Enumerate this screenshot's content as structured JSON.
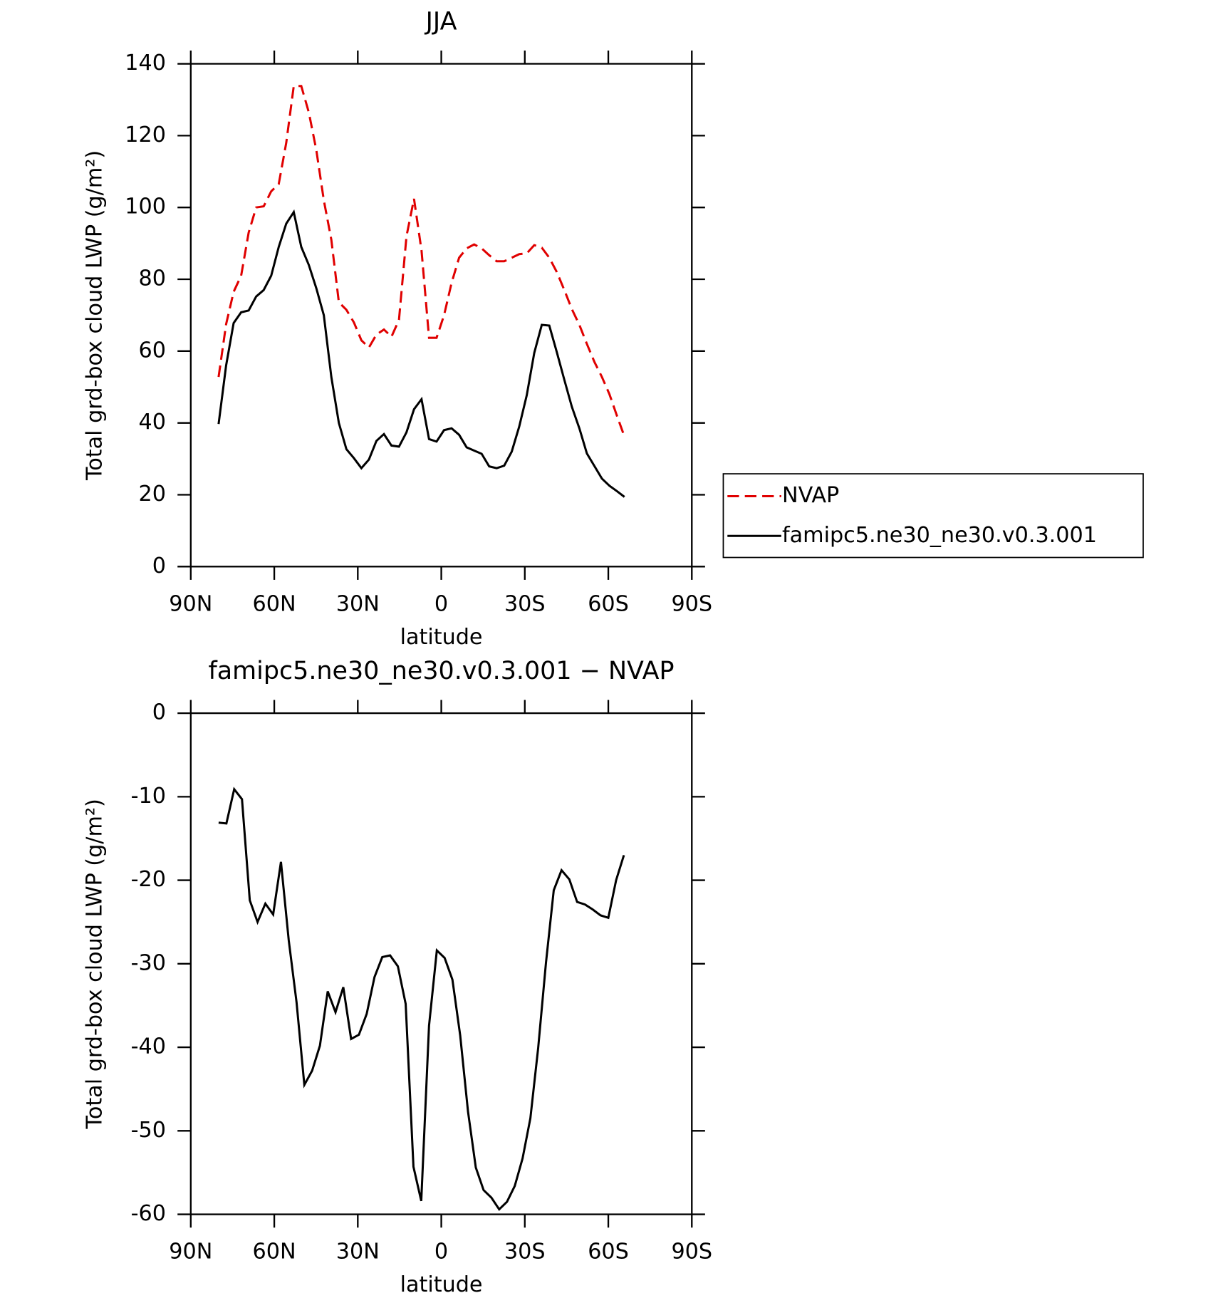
{
  "chart_data": [
    {
      "type": "line",
      "title": "JJA",
      "xlabel": "latitude",
      "ylabel": "Total grd-box cloud LWP (g/m²)",
      "x": [
        80,
        77.3,
        74.6,
        71.9,
        69.2,
        66.5,
        63.8,
        61.1,
        58.4,
        55.7,
        53,
        50.3,
        47.6,
        44.9,
        42.2,
        39.5,
        36.8,
        34.1,
        31.4,
        28.7,
        26,
        23.3,
        20.6,
        17.9,
        15.2,
        12.5,
        9.8,
        7.1,
        4.4,
        1.7,
        -1,
        -3.7,
        -6.4,
        -9.1,
        -11.8,
        -14.5,
        -17.2,
        -19.9,
        -22.6,
        -25.3,
        -28,
        -30.7,
        -33.4,
        -36.1,
        -38.8,
        -41.5,
        -44.2,
        -46.9,
        -49.6,
        -52.3,
        -55,
        -57.7,
        -60.4,
        -63.1,
        -65.8
      ],
      "series": [
        {
          "name": "NVAP",
          "color": "#e00000",
          "dash": "dashed",
          "values": [
            52.8,
            67.5,
            76.5,
            81,
            93,
            100,
            100.3,
            104.5,
            106.5,
            118,
            133.8,
            133.8,
            126.5,
            116,
            102,
            91,
            73.6,
            71.5,
            68,
            63,
            61,
            64.6,
            66,
            64,
            68.7,
            92,
            102.4,
            88,
            63.7,
            63.7,
            70,
            79,
            86,
            88.6,
            89.7,
            88.6,
            86.7,
            85,
            85,
            86,
            87,
            87.2,
            89.5,
            88.8,
            86,
            82,
            77,
            71.7,
            67.3,
            62,
            57,
            52.8,
            48,
            42,
            36.2
          ]
        },
        {
          "name": "famipc5.ne30_ne30.v0.3.001",
          "color": "#000000",
          "dash": "solid",
          "values": [
            39.7,
            56,
            67.8,
            70.8,
            71.3,
            75.2,
            77,
            81,
            89,
            95.5,
            98.7,
            89,
            84,
            77.5,
            70,
            52.8,
            40,
            32.7,
            30.2,
            27.4,
            29.8,
            35,
            36.9,
            33.7,
            33.4,
            37.4,
            43.8,
            46.6,
            35.5,
            34.8,
            38,
            38.5,
            36.7,
            33.2,
            32.3,
            31.4,
            27.9,
            27.4,
            28.1,
            32,
            39,
            47.7,
            59.5,
            67.3,
            67.1,
            59.7,
            52,
            44.5,
            38.5,
            31.5,
            28,
            24.5,
            22.5,
            21,
            19.4
          ]
        }
      ],
      "xlim": [
        90,
        -90
      ],
      "xticks": [
        {
          "value": 90,
          "label": "90N"
        },
        {
          "value": 60,
          "label": "60N"
        },
        {
          "value": 30,
          "label": "30N"
        },
        0,
        {
          "value": -30,
          "label": "30S"
        },
        {
          "value": -60,
          "label": "60S"
        },
        {
          "value": -90,
          "label": "90S"
        }
      ],
      "ylim": [
        0,
        140
      ],
      "yticks": [
        0,
        20,
        40,
        60,
        80,
        100,
        120,
        140
      ],
      "legend": "right"
    },
    {
      "type": "line",
      "title": "famipc5.ne30_ne30.v0.3.001 − NVAP",
      "xlabel": "latitude",
      "ylabel": "Total grd-box cloud LWP (g/m²)",
      "x": [
        80,
        77.2,
        74.4,
        71.6,
        68.8,
        66,
        63.2,
        60.4,
        57.6,
        54.8,
        52,
        49.2,
        46.4,
        43.6,
        40.8,
        38,
        35.2,
        32.4,
        29.6,
        26.8,
        24,
        21.2,
        18.4,
        15.6,
        12.8,
        10,
        7.2,
        4.4,
        1.6,
        -1.2,
        -4,
        -6.8,
        -9.6,
        -12.4,
        -15.2,
        -18,
        -20.8,
        -23.6,
        -26.4,
        -29.2,
        -32,
        -34.8,
        -37.6,
        -40.4,
        -43.2,
        -46,
        -48.8,
        -51.6,
        -54.4,
        -57.2,
        -60,
        -62.8,
        -65.6
      ],
      "series": [
        {
          "color": "#000000",
          "dash": "solid",
          "values": [
            -13.1,
            -13.2,
            -9.1,
            -10.3,
            -22.4,
            -25,
            -22.8,
            -24.1,
            -17.8,
            -27.2,
            -34.6,
            -44.5,
            -42.8,
            -39.8,
            -33.3,
            -35.8,
            -32.8,
            -39,
            -38.5,
            -36,
            -31.6,
            -29.2,
            -29,
            -30.3,
            -34.8,
            -54.3,
            -58.4,
            -37.4,
            -28.4,
            -29.3,
            -31.9,
            -38.6,
            -47.7,
            -54.4,
            -57.1,
            -58,
            -59.4,
            -58.5,
            -56.6,
            -53.3,
            -48.5,
            -40.1,
            -29.9,
            -21.2,
            -18.8,
            -19.9,
            -22.6,
            -22.9,
            -23.5,
            -24.2,
            -24.5,
            -20,
            -17
          ]
        }
      ],
      "xlim": [
        90,
        -90
      ],
      "xticks": [
        {
          "value": 90,
          "label": "90N"
        },
        {
          "value": 60,
          "label": "60N"
        },
        {
          "value": 30,
          "label": "30N"
        },
        0,
        {
          "value": -30,
          "label": "30S"
        },
        {
          "value": -60,
          "label": "60S"
        },
        {
          "value": -90,
          "label": "90S"
        }
      ],
      "ylim": [
        -60,
        0
      ],
      "yticks": [
        -60,
        -50,
        -40,
        -30,
        -20,
        -10,
        0
      ]
    }
  ]
}
